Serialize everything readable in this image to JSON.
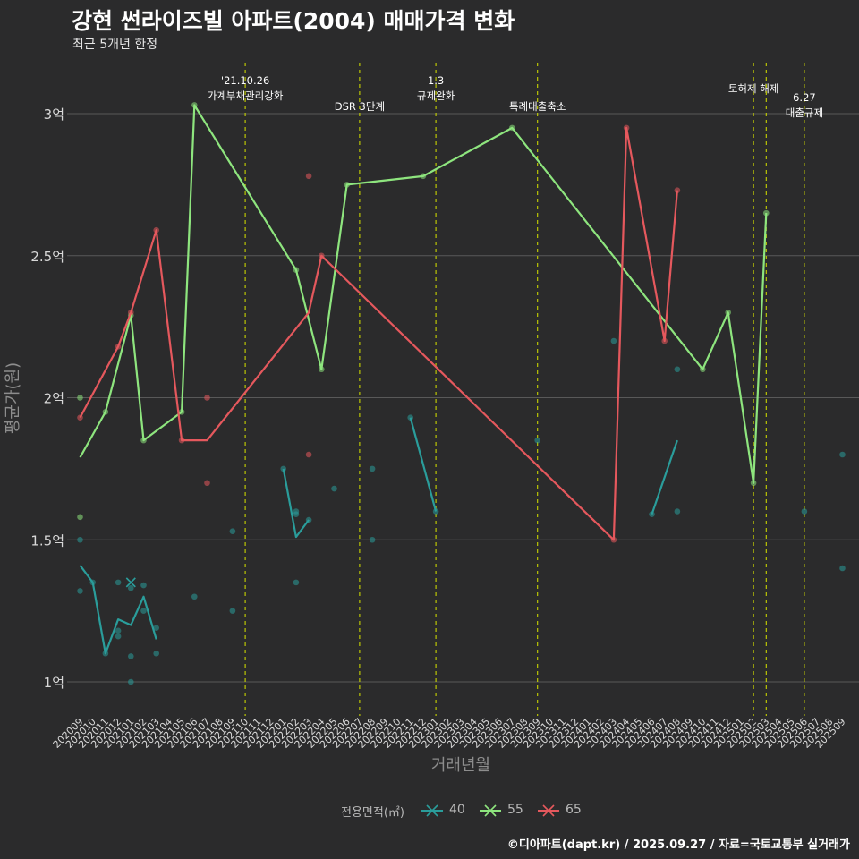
{
  "header": {
    "title": "강현 썬라이즈빌 아파트(2004) 매매가격 변화",
    "subtitle": "최근 5개년 한정"
  },
  "footer": {
    "caption": "©디아파트(dapt.kr) / 2025.09.27 / 자료=국토교통부 실거래가"
  },
  "colors": {
    "background": "#2b2b2c",
    "grid": "#595959",
    "event_line": "#c8d400",
    "s40": "#2a9d9b",
    "s55": "#8ee57e",
    "s65": "#e5585d"
  },
  "chart_data": {
    "type": "line",
    "title": "강현 썬라이즈빌 아파트(2004) 매매가격 변화",
    "subtitle": "최근 5개년 한정",
    "xlabel": "거래년월",
    "ylabel": "평균가(원)",
    "ylim": [
      0.88,
      3.2
    ],
    "yticks": [
      {
        "value": 1.0,
        "label": "1억"
      },
      {
        "value": 1.5,
        "label": "1.5억"
      },
      {
        "value": 2.0,
        "label": "2억"
      },
      {
        "value": 2.5,
        "label": "2.5억"
      },
      {
        "value": 3.0,
        "label": "3억"
      }
    ],
    "categories": [
      "202009",
      "202010",
      "202011",
      "202012",
      "202101",
      "202102",
      "202103",
      "202104",
      "202105",
      "202106",
      "202107",
      "202108",
      "202109",
      "202110",
      "202111",
      "202112",
      "202201",
      "202202",
      "202203",
      "202204",
      "202205",
      "202206",
      "202207",
      "202208",
      "202209",
      "202210",
      "202211",
      "202212",
      "202301",
      "202302",
      "202303",
      "202304",
      "202305",
      "202306",
      "202307",
      "202308",
      "202309",
      "202310",
      "202311",
      "202312",
      "202401",
      "202402",
      "202403",
      "202404",
      "202405",
      "202406",
      "202407",
      "202408",
      "202409",
      "202410",
      "202411",
      "202412",
      "202501",
      "202502",
      "202503",
      "202504",
      "202505",
      "202506",
      "202507",
      "202508",
      "202509"
    ],
    "legend_title": "전용면적(㎡)",
    "series": [
      {
        "name": "40",
        "color_key": "s40",
        "lines": [
          [
            [
              "202009",
              1.41
            ],
            [
              "202010",
              1.35
            ],
            [
              "202011",
              1.1
            ],
            [
              "202012",
              1.22
            ],
            [
              "202101",
              1.2
            ],
            [
              "202102",
              1.3
            ],
            [
              "202103",
              1.15
            ]
          ],
          [
            [
              "202201",
              1.75
            ],
            [
              "202202",
              1.51
            ],
            [
              "202203",
              1.57
            ]
          ],
          [
            [
              "202211",
              1.93
            ],
            [
              "202301",
              1.6
            ]
          ],
          [
            [
              "202406",
              1.59
            ],
            [
              "202408",
              1.85
            ]
          ]
        ],
        "points": [
          [
            "202009",
            1.5
          ],
          [
            "202009",
            1.32
          ],
          [
            "202010",
            1.35
          ],
          [
            "202011",
            1.1
          ],
          [
            "202012",
            1.35
          ],
          [
            "202012",
            1.18
          ],
          [
            "202012",
            1.16
          ],
          [
            "202101",
            1.33
          ],
          [
            "202101",
            1.09
          ],
          [
            "202101",
            1.0
          ],
          [
            "202102",
            1.34
          ],
          [
            "202102",
            1.25
          ],
          [
            "202103",
            1.1
          ],
          [
            "202103",
            1.19
          ],
          [
            "202106",
            1.3
          ],
          [
            "202109",
            1.53
          ],
          [
            "202109",
            1.25
          ],
          [
            "202201",
            1.75
          ],
          [
            "202202",
            1.6
          ],
          [
            "202202",
            1.59
          ],
          [
            "202202",
            1.35
          ],
          [
            "202203",
            1.57
          ],
          [
            "202205",
            1.68
          ],
          [
            "202208",
            1.75
          ],
          [
            "202208",
            1.5
          ],
          [
            "202211",
            1.93
          ],
          [
            "202301",
            1.6
          ],
          [
            "202309",
            1.85
          ],
          [
            "202403",
            2.2
          ],
          [
            "202406",
            1.59
          ],
          [
            "202408",
            2.1
          ],
          [
            "202408",
            1.6
          ],
          [
            "202506",
            1.6
          ],
          [
            "202509",
            1.8
          ],
          [
            "202509",
            1.4
          ]
        ],
        "cross_points": [
          [
            "202101",
            1.35
          ]
        ]
      },
      {
        "name": "55",
        "color_key": "s55",
        "lines": [
          [
            [
              "202009",
              1.79
            ],
            [
              "202011",
              1.95
            ],
            [
              "202101",
              2.29
            ],
            [
              "202102",
              1.85
            ],
            [
              "202105",
              1.95
            ],
            [
              "202106",
              3.03
            ],
            [
              "202202",
              2.45
            ],
            [
              "202204",
              2.1
            ],
            [
              "202206",
              2.75
            ],
            [
              "202212",
              2.78
            ],
            [
              "202307",
              2.95
            ],
            [
              "202410",
              2.1
            ],
            [
              "202412",
              2.3
            ],
            [
              "202502",
              1.7
            ],
            [
              "202503",
              2.65
            ]
          ]
        ],
        "points": [
          [
            "202009",
            2.0
          ],
          [
            "202009",
            1.58
          ],
          [
            "202011",
            1.95
          ],
          [
            "202101",
            2.29
          ],
          [
            "202102",
            1.85
          ],
          [
            "202105",
            1.95
          ],
          [
            "202106",
            3.03
          ],
          [
            "202202",
            2.45
          ],
          [
            "202204",
            2.1
          ],
          [
            "202206",
            2.75
          ],
          [
            "202212",
            2.78
          ],
          [
            "202307",
            2.95
          ],
          [
            "202410",
            2.1
          ],
          [
            "202412",
            2.3
          ],
          [
            "202502",
            1.7
          ],
          [
            "202503",
            2.65
          ]
        ],
        "cross_points": []
      },
      {
        "name": "65",
        "color_key": "s65",
        "lines": [
          [
            [
              "202009",
              1.93
            ],
            [
              "202012",
              2.18
            ],
            [
              "202101",
              2.3
            ],
            [
              "202103",
              2.59
            ],
            [
              "202105",
              1.85
            ],
            [
              "202107",
              1.85
            ],
            [
              "202203",
              2.3
            ],
            [
              "202204",
              2.5
            ],
            [
              "202403",
              1.5
            ],
            [
              "202404",
              2.95
            ],
            [
              "202407",
              2.2
            ],
            [
              "202408",
              2.73
            ]
          ]
        ],
        "points": [
          [
            "202009",
            1.93
          ],
          [
            "202012",
            2.18
          ],
          [
            "202101",
            2.3
          ],
          [
            "202103",
            2.59
          ],
          [
            "202105",
            1.85
          ],
          [
            "202107",
            2.0
          ],
          [
            "202107",
            1.7
          ],
          [
            "202203",
            2.78
          ],
          [
            "202203",
            1.8
          ],
          [
            "202204",
            2.5
          ],
          [
            "202403",
            1.5
          ],
          [
            "202404",
            2.95
          ],
          [
            "202407",
            2.2
          ],
          [
            "202408",
            2.73
          ]
        ],
        "cross_points": []
      }
    ],
    "events": [
      {
        "x": "202110",
        "lines": [
          "'21.10.26",
          "가계부채관리강화"
        ]
      },
      {
        "x": "202207",
        "lines": [
          "DSR 3단계"
        ]
      },
      {
        "x": "202301",
        "lines": [
          "1.3",
          "규제완화"
        ]
      },
      {
        "x": "202309",
        "lines": [
          "특례대출축소"
        ]
      },
      {
        "x": "202502",
        "lines": [
          "토허제 해제"
        ]
      },
      {
        "x": "202503",
        "lines": [
          ""
        ]
      },
      {
        "x": "202506",
        "lines": [
          "6.27",
          "대출규제"
        ]
      }
    ]
  }
}
